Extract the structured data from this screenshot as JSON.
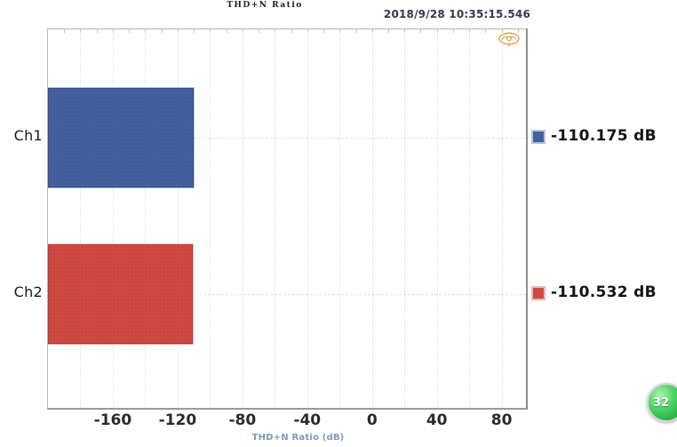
{
  "header": {
    "timestamp": "2018/9/28 10:35:15.546"
  },
  "chart_data": {
    "type": "bar",
    "orientation": "horizontal",
    "title": "THD+N Ratio",
    "xlabel": "THD+N Ratio (dB)",
    "categories": [
      "Ch1",
      "Ch2"
    ],
    "values": [
      -110.175,
      -110.532
    ],
    "unit": "dB",
    "xlim": [
      -200,
      95
    ],
    "xticks": [
      -160,
      -120,
      -80,
      -40,
      0,
      40,
      80
    ],
    "grid": true,
    "minor_grid_step": 20,
    "top_tick_step": 10,
    "legend_position": "right",
    "series": [
      {
        "name": "Ch1",
        "value": -110.175,
        "label": "-110.175 dB",
        "fill": "#44619e",
        "edge": "#2d4b8e",
        "light": "#b6c3e2"
      },
      {
        "name": "Ch2",
        "value": -110.532,
        "label": "-110.532 dB",
        "fill": "#d04a42",
        "edge": "#b83831",
        "light": "#eab7af"
      }
    ]
  },
  "icons": {
    "emblem": "brand-emblem-icon",
    "emblem_color": "#e69a3e"
  },
  "badge": {
    "label": "32",
    "color": "#2eb84a"
  }
}
